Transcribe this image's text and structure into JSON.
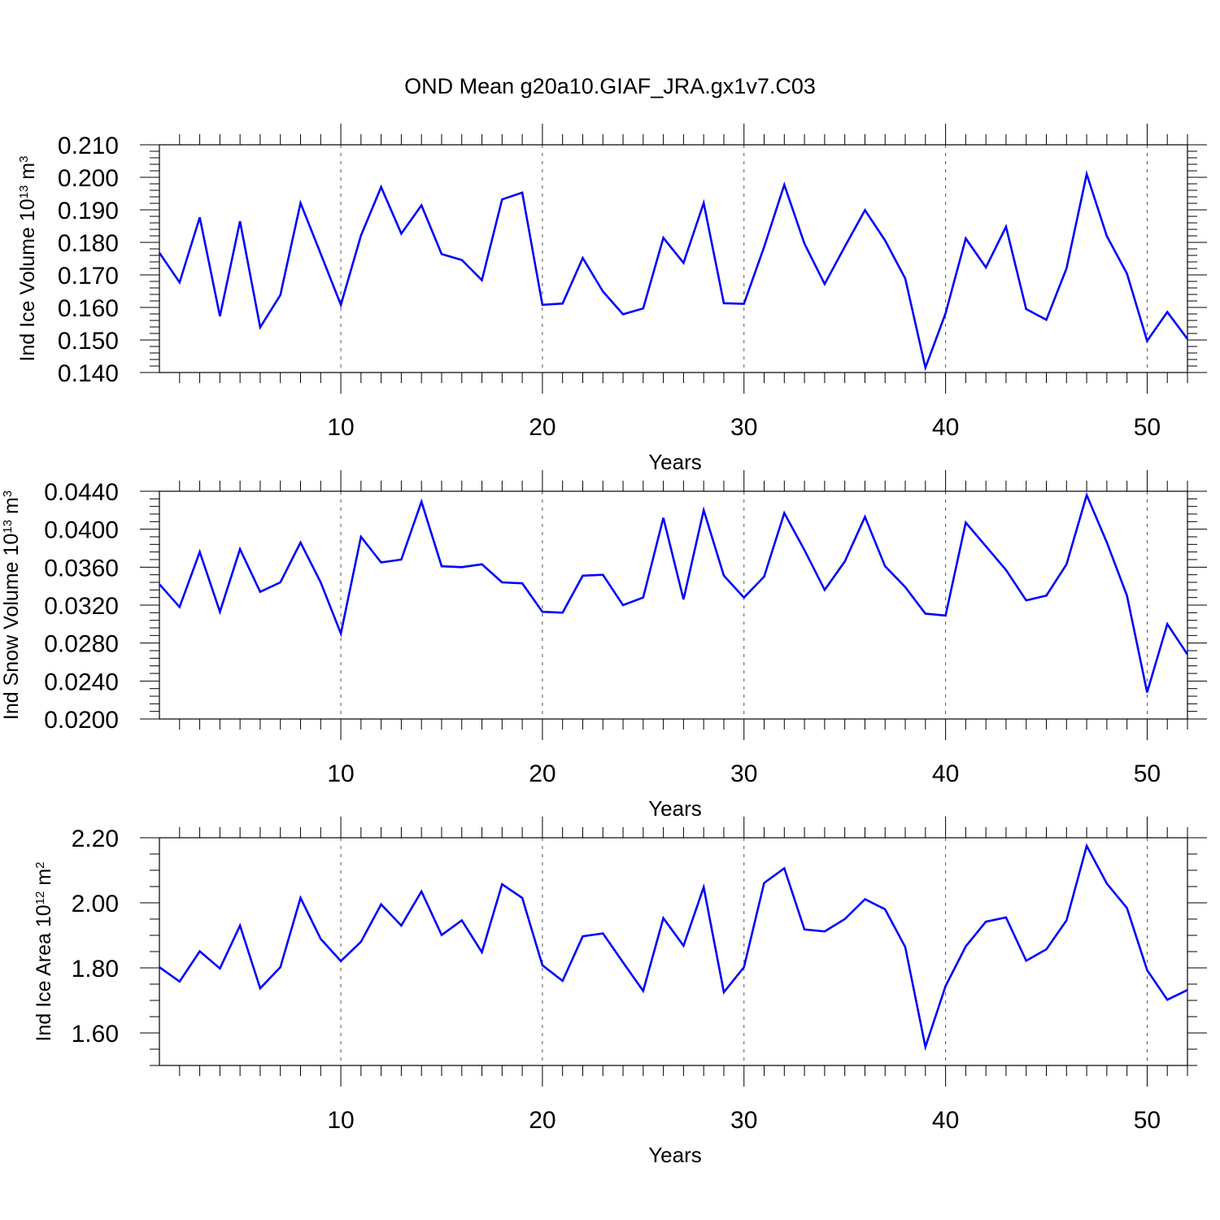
{
  "chart_data": [
    {
      "type": "line",
      "title": "OND Mean g20a10.GIAF_JRA.gx1v7.C03",
      "ylabel": "Ind Ice Volume 10",
      "ylabel_exp": "13",
      "ylabel_unit": " m",
      "ylabel_unit_exp": "3",
      "xlabel": "Years",
      "xlim": [
        1,
        52
      ],
      "ylim": [
        0.14,
        0.21
      ],
      "x_ticks": [
        10,
        20,
        30,
        40,
        50
      ],
      "x_tick_labels": [
        "10",
        "20",
        "30",
        "40",
        "50"
      ],
      "y_ticks": [
        0.14,
        0.15,
        0.16,
        0.17,
        0.18,
        0.19,
        0.2,
        0.21
      ],
      "y_tick_labels": [
        "0.140",
        "0.150",
        "0.160",
        "0.170",
        "0.180",
        "0.190",
        "0.200",
        "0.210"
      ],
      "grid": "vertical dashed at major x ticks",
      "line_color": "#0000ff",
      "x": [
        1,
        2,
        3,
        4,
        5,
        6,
        7,
        8,
        9,
        10,
        11,
        12,
        13,
        14,
        15,
        16,
        17,
        18,
        19,
        20,
        21,
        22,
        23,
        24,
        25,
        26,
        27,
        28,
        29,
        30,
        31,
        32,
        33,
        34,
        35,
        36,
        37,
        38,
        39,
        40,
        41,
        42,
        43,
        44,
        45,
        46,
        47,
        48,
        49,
        50,
        51,
        52
      ],
      "values": [
        0.1768,
        0.1677,
        0.1877,
        0.1573,
        0.1865,
        0.1539,
        0.1638,
        0.1921,
        0.1765,
        0.1608,
        0.1821,
        0.197,
        0.1827,
        0.1914,
        0.1764,
        0.1746,
        0.1684,
        0.1932,
        0.1953,
        0.1608,
        0.1612,
        0.1752,
        0.1649,
        0.1579,
        0.1597,
        0.1814,
        0.1737,
        0.1921,
        0.1613,
        0.1611,
        0.1786,
        0.1977,
        0.1796,
        0.1672,
        0.1787,
        0.1899,
        0.1806,
        0.1689,
        0.1415,
        0.1582,
        0.1812,
        0.1723,
        0.1848,
        0.1595,
        0.1562,
        0.172,
        0.201,
        0.1819,
        0.1704,
        0.1497,
        0.1586,
        0.1503
      ]
    },
    {
      "type": "line",
      "ylabel": "Ind Snow Volume 10",
      "ylabel_exp": "13",
      "ylabel_unit": " m",
      "ylabel_unit_exp": "3",
      "xlabel": "Years",
      "xlim": [
        1,
        52
      ],
      "ylim": [
        0.02,
        0.044
      ],
      "x_ticks": [
        10,
        20,
        30,
        40,
        50
      ],
      "x_tick_labels": [
        "10",
        "20",
        "30",
        "40",
        "50"
      ],
      "y_ticks": [
        0.02,
        0.024,
        0.028,
        0.032,
        0.036,
        0.04,
        0.044
      ],
      "y_tick_labels": [
        "0.0200",
        "0.0240",
        "0.0280",
        "0.0320",
        "0.0360",
        "0.0400",
        "0.0440"
      ],
      "grid": "vertical dashed at major x ticks",
      "line_color": "#0000ff",
      "x": [
        1,
        2,
        3,
        4,
        5,
        6,
        7,
        8,
        9,
        10,
        11,
        12,
        13,
        14,
        15,
        16,
        17,
        18,
        19,
        20,
        21,
        22,
        23,
        24,
        25,
        26,
        27,
        28,
        29,
        30,
        31,
        32,
        33,
        34,
        35,
        36,
        37,
        38,
        39,
        40,
        41,
        42,
        43,
        44,
        45,
        46,
        47,
        48,
        49,
        50,
        51,
        52
      ],
      "values": [
        0.0342,
        0.0318,
        0.0376,
        0.0313,
        0.0379,
        0.0334,
        0.0344,
        0.0386,
        0.0344,
        0.029,
        0.0392,
        0.0365,
        0.0368,
        0.0429,
        0.0361,
        0.036,
        0.0363,
        0.0344,
        0.0343,
        0.0313,
        0.0312,
        0.0351,
        0.0352,
        0.032,
        0.0328,
        0.0412,
        0.0326,
        0.042,
        0.0351,
        0.0328,
        0.035,
        0.0417,
        0.0378,
        0.0336,
        0.0366,
        0.0413,
        0.0361,
        0.0339,
        0.0311,
        0.0309,
        0.0407,
        0.0382,
        0.0357,
        0.0325,
        0.033,
        0.0363,
        0.0436,
        0.0386,
        0.033,
        0.0228,
        0.03,
        0.0268
      ]
    },
    {
      "type": "line",
      "ylabel": "Ind Ice Area 10",
      "ylabel_exp": "12",
      "ylabel_unit": " m",
      "ylabel_unit_exp": "2",
      "xlabel": "Years",
      "xlim": [
        1,
        52
      ],
      "ylim": [
        1.5,
        2.2
      ],
      "x_ticks": [
        10,
        20,
        30,
        40,
        50
      ],
      "x_tick_labels": [
        "10",
        "20",
        "30",
        "40",
        "50"
      ],
      "y_ticks": [
        1.6,
        1.8,
        2.0,
        2.2
      ],
      "y_tick_labels": [
        "1.60",
        "1.80",
        "2.00",
        "2.20"
      ],
      "y_minor_step": 0.05,
      "grid": "vertical dashed at major x ticks",
      "line_color": "#0000ff",
      "x": [
        1,
        2,
        3,
        4,
        5,
        6,
        7,
        8,
        9,
        10,
        11,
        12,
        13,
        14,
        15,
        16,
        17,
        18,
        19,
        20,
        21,
        22,
        23,
        24,
        25,
        26,
        27,
        28,
        29,
        30,
        31,
        32,
        33,
        34,
        35,
        36,
        37,
        38,
        39,
        40,
        41,
        42,
        43,
        44,
        45,
        46,
        47,
        48,
        49,
        50,
        51,
        52
      ],
      "values": [
        1.802,
        1.758,
        1.851,
        1.798,
        1.93,
        1.737,
        1.802,
        2.015,
        1.889,
        1.821,
        1.88,
        1.995,
        1.93,
        2.035,
        1.901,
        1.946,
        1.848,
        2.057,
        2.015,
        1.808,
        1.76,
        1.897,
        1.906,
        1.817,
        1.729,
        1.953,
        1.868,
        2.048,
        1.725,
        1.802,
        2.061,
        2.106,
        1.918,
        1.912,
        1.95,
        2.011,
        1.98,
        1.864,
        1.557,
        1.744,
        1.866,
        1.942,
        1.955,
        1.822,
        1.857,
        1.946,
        2.175,
        2.059,
        1.984,
        1.793,
        1.702,
        1.732
      ]
    }
  ]
}
